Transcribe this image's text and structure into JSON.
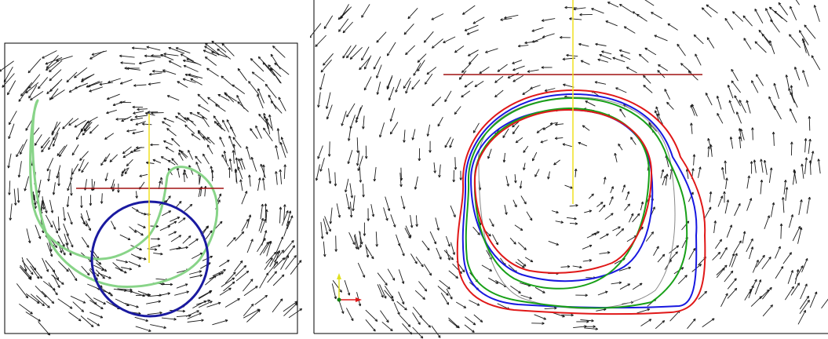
{
  "figure": {
    "panels": [
      {
        "id": "left",
        "description_items": [
          "velocity-vector-field",
          "initial-interface-circle",
          "deformed-interface",
          "horizontal-marker-line",
          "vertical-marker-line"
        ]
      },
      {
        "id": "right",
        "description_items": [
          "velocity-vector-field",
          "interface-contours",
          "horizontal-marker-line",
          "vertical-marker-line",
          "axis-triad"
        ]
      }
    ],
    "colors": {
      "arrow": "#1a1a1a",
      "frame": "#000000",
      "red_line": "#a01010",
      "yellow_line": "#f0e020",
      "green_contour": "#88d488",
      "blue_circle": "#1a1aa0",
      "contour_red": "#e01818",
      "contour_blue": "#1818e0",
      "contour_green": "#18a018",
      "contour_gray": "#888888",
      "triad_x": "#e01818",
      "triad_y": "#e0e020",
      "triad_origin": "#108010"
    }
  }
}
